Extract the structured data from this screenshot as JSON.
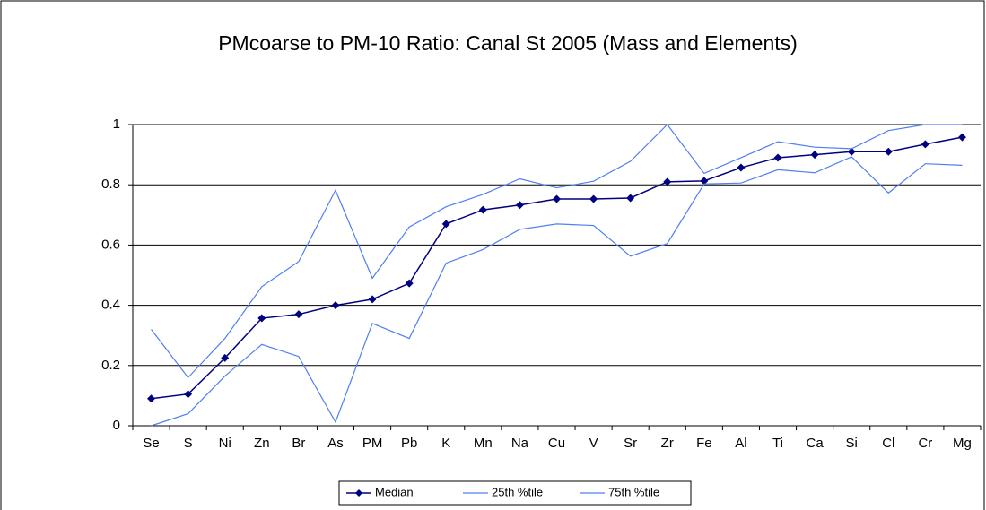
{
  "chart_data": {
    "type": "line",
    "title": "PMcoarse to PM-10 Ratio: Canal St 2005 (Mass and Elements)",
    "categories": [
      "Se",
      "S",
      "Ni",
      "Zn",
      "Br",
      "As",
      "PM",
      "Pb",
      "K",
      "Mn",
      "Na",
      "Cu",
      "V",
      "Sr",
      "Zr",
      "Fe",
      "Al",
      "Ti",
      "Ca",
      "Si",
      "Cl",
      "Cr",
      "Mg"
    ],
    "series": [
      {
        "name": "Median",
        "color": "#000080",
        "marker": "diamond",
        "values": [
          0.09,
          0.105,
          0.225,
          0.357,
          0.37,
          0.4,
          0.42,
          0.473,
          0.67,
          0.717,
          0.733,
          0.753,
          0.753,
          0.756,
          0.81,
          0.813,
          0.857,
          0.89,
          0.9,
          0.91,
          0.91,
          0.935,
          0.958
        ]
      },
      {
        "name": "25th %tile",
        "color": "#4f7ff0",
        "values": [
          0,
          0.04,
          0.165,
          0.27,
          0.23,
          0.012,
          0.34,
          0.29,
          0.54,
          0.585,
          0.652,
          0.67,
          0.665,
          0.563,
          0.605,
          0.803,
          0.806,
          0.85,
          0.84,
          0.893,
          0.773,
          0.87,
          0.865
        ]
      },
      {
        "name": "75th %tile",
        "color": "#4f7ff0",
        "values": [
          0.32,
          0.16,
          0.29,
          0.462,
          0.545,
          0.782,
          0.49,
          0.66,
          0.727,
          0.768,
          0.82,
          0.79,
          0.812,
          0.878,
          1,
          0.838,
          0.89,
          0.943,
          0.925,
          0.92,
          0.98,
          1,
          1
        ]
      }
    ],
    "ylim": [
      0,
      1
    ],
    "yticks": [
      0,
      0.2,
      0.4,
      0.6,
      0.8,
      1
    ],
    "grid": true,
    "legend": "bottom"
  }
}
